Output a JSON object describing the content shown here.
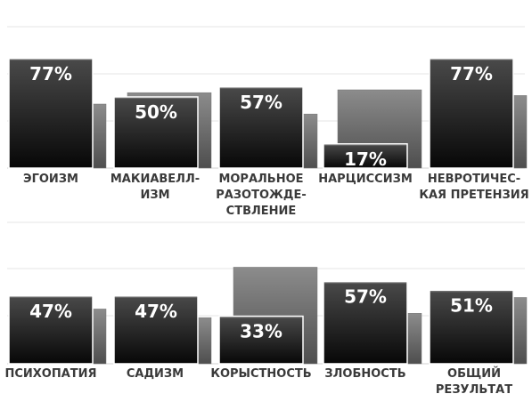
{
  "chart_data": [
    {
      "type": "bar",
      "categories": [
        [
          "ЭГОИЗМ"
        ],
        [
          "МАКИАВЕЛЛ-",
          "ИЗМ"
        ],
        [
          "МОРАЛЬНОЕ",
          "РАЗОТОЖДЕ-",
          "СТВЛЕНИЕ"
        ],
        [
          "НАРЦИССИЗМ"
        ],
        [
          "НЕВРОТИЧЕС-",
          "КАЯ ПРЕТЕНЗИЯ"
        ]
      ],
      "values": [
        77,
        50,
        57,
        17,
        77
      ],
      "labels": [
        "77%",
        "50%",
        "57%",
        "17%",
        "77%"
      ],
      "background_values": [
        45,
        53,
        38,
        55,
        51
      ],
      "ylim": [
        0,
        100
      ],
      "grid": true,
      "legend": "none"
    },
    {
      "type": "bar",
      "categories": [
        [
          "ПСИХОПАТИЯ"
        ],
        [
          "САДИЗМ"
        ],
        [
          "КОРЫСТНОСТЬ"
        ],
        [
          "ЗЛОБНОСТЬ"
        ],
        [
          "ОБЩИЙ",
          "РЕЗУЛЬТАТ"
        ]
      ],
      "values": [
        47,
        47,
        33,
        57,
        51
      ],
      "labels": [
        "47%",
        "47%",
        "33%",
        "57%",
        "51%"
      ],
      "background_values": [
        38,
        32,
        67,
        35,
        46
      ],
      "ylim": [
        0,
        100
      ],
      "grid": true,
      "legend": "none"
    }
  ],
  "colors": {
    "bar_top": "#4a4a4a",
    "bar_bottom": "#070707",
    "bar_outline": "#ffffff",
    "bg_bar_top": "#8c8c8c",
    "bg_bar_bottom": "#4e4e4e",
    "grid": "#e6e6e6",
    "label_text": "#3a3a3a",
    "value_text": "#ffffff"
  }
}
